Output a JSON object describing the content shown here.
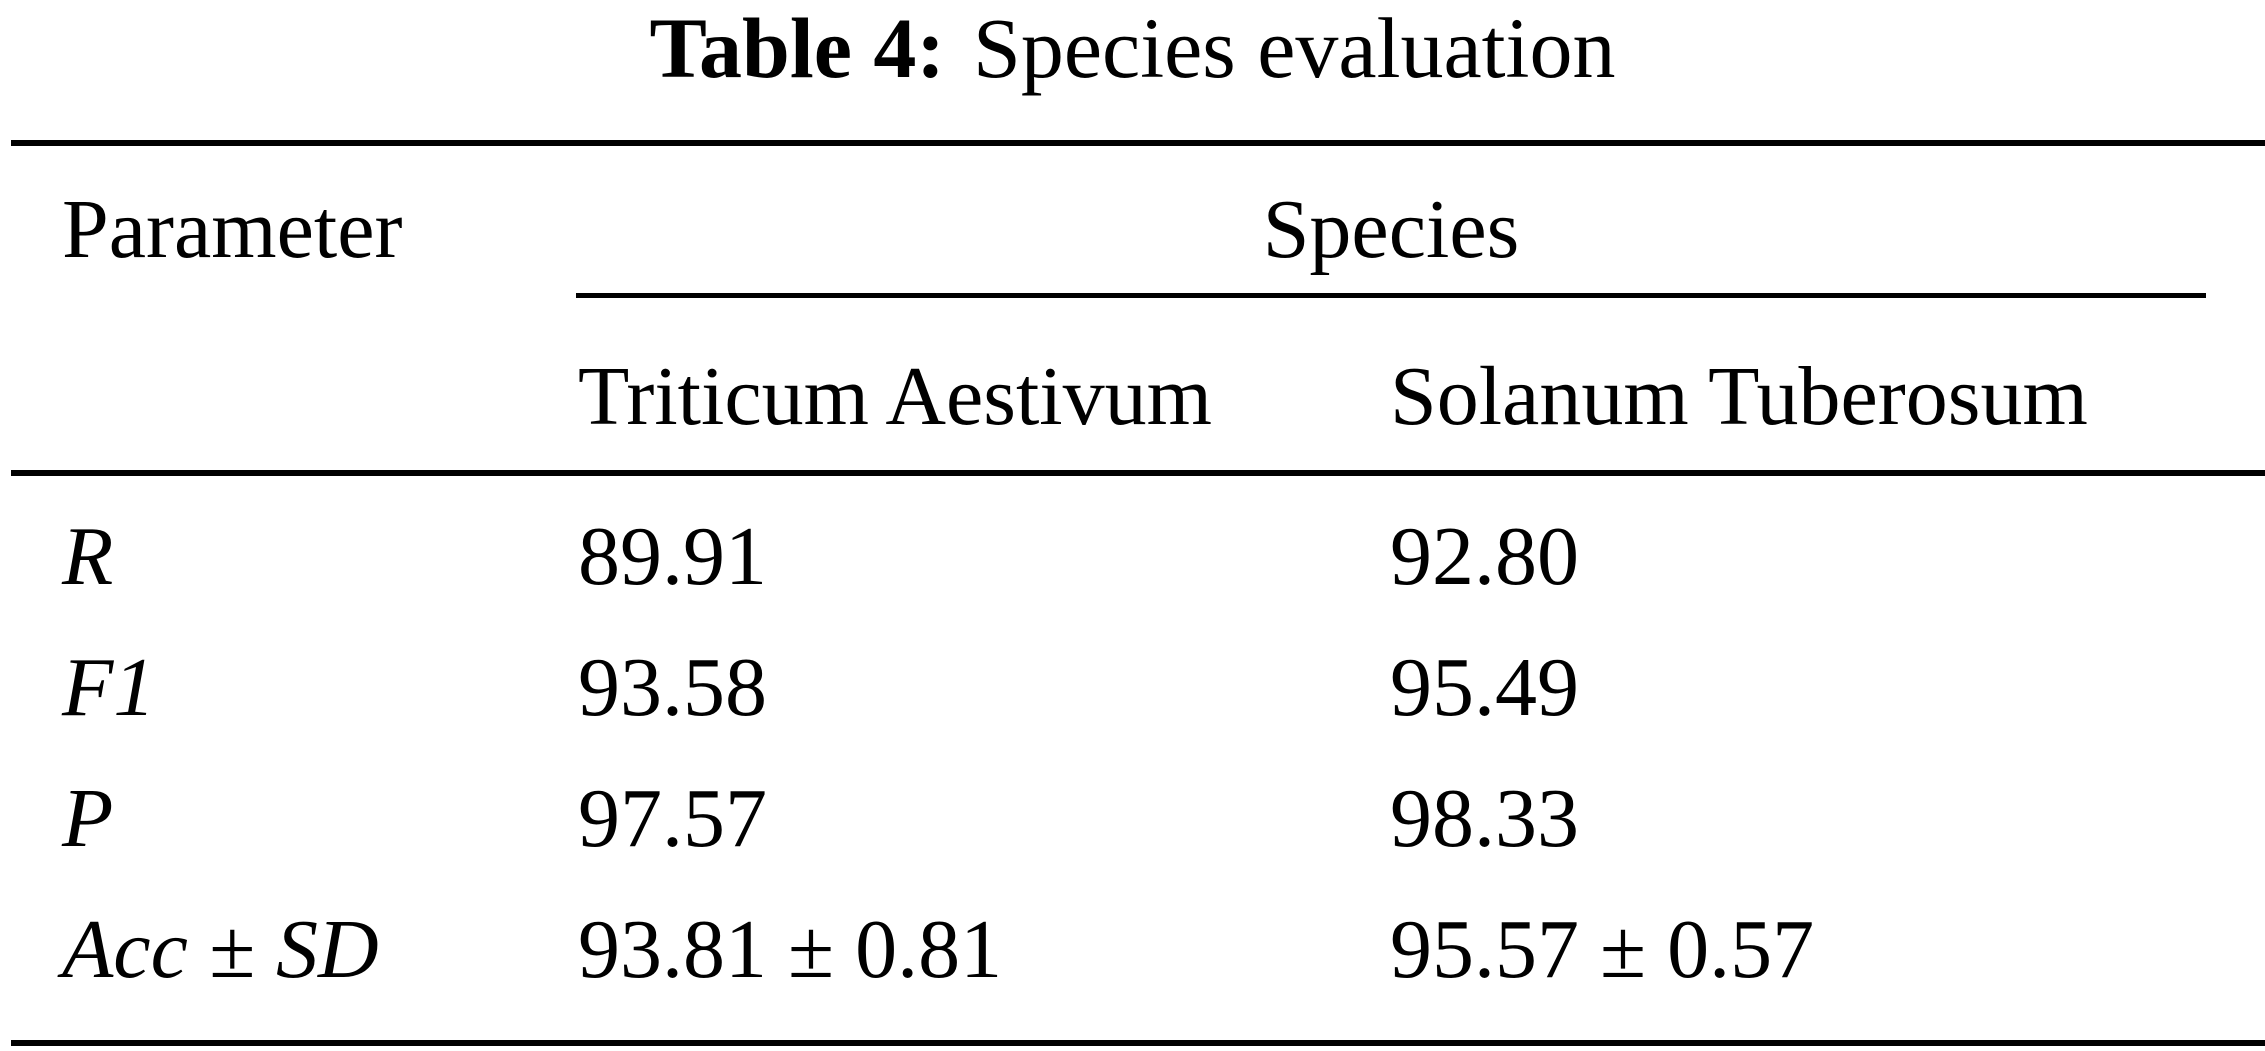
{
  "caption": {
    "label": "Table 4:",
    "text": "Species evaluation"
  },
  "table": {
    "parameter_header": "Parameter",
    "species_header": "Species",
    "columns": [
      "Triticum Aestivum",
      "Solanum Tuberosum"
    ],
    "rows": [
      {
        "parameter": "R",
        "values": [
          "89.91",
          "92.80"
        ]
      },
      {
        "parameter": "F1",
        "values": [
          "93.58",
          "95.49"
        ]
      },
      {
        "parameter": "P",
        "values": [
          "97.57",
          "98.33"
        ]
      },
      {
        "parameter": "Acc ± SD",
        "values": [
          "93.81 ± 0.81",
          "95.57 ± 0.57"
        ]
      }
    ]
  }
}
